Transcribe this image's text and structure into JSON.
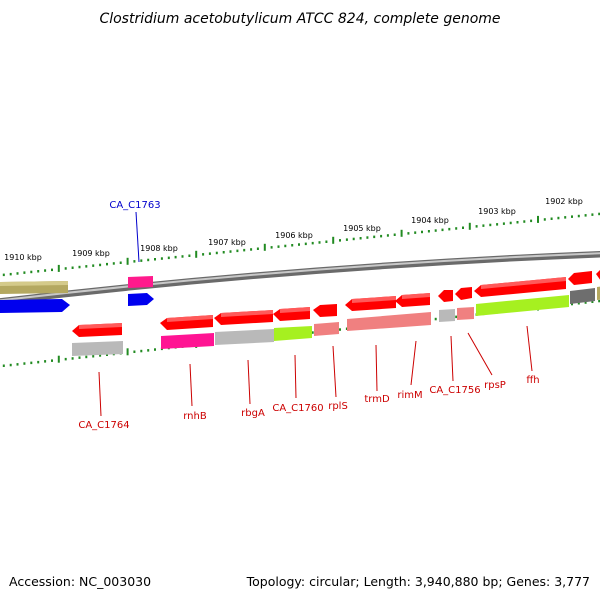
{
  "title": "Clostridium acetobutylicum ATCC 824, complete genome",
  "footer": {
    "accession": "Accession: NC_003030",
    "topology": "Topology: circular; Length: 3,940,880 bp; Genes: 3,777"
  },
  "ruler": [
    "1910 kbp",
    "1909 kbp",
    "1908 kbp",
    "1907 kbp",
    "1906 kbp",
    "1905 kbp",
    "1904 kbp",
    "1903 kbp",
    "1902 kbp"
  ],
  "gene_labels": [
    "CA_C1763",
    "CA_C1764",
    "rnhB",
    "rbgA",
    "CA_C1760",
    "rplS",
    "trmD",
    "rimM",
    "CA_C1756",
    "rpsP",
    "ffh"
  ],
  "colors": {
    "red": "#ff0000",
    "salmon": "#f08080",
    "grey": "#b4b4b4",
    "darkgrey": "#6e6e6e",
    "olive": "#b4a860",
    "blue": "#0000ff",
    "magenta": "#ff1493",
    "lime": "#a0ff20",
    "tick": "#228b22"
  }
}
